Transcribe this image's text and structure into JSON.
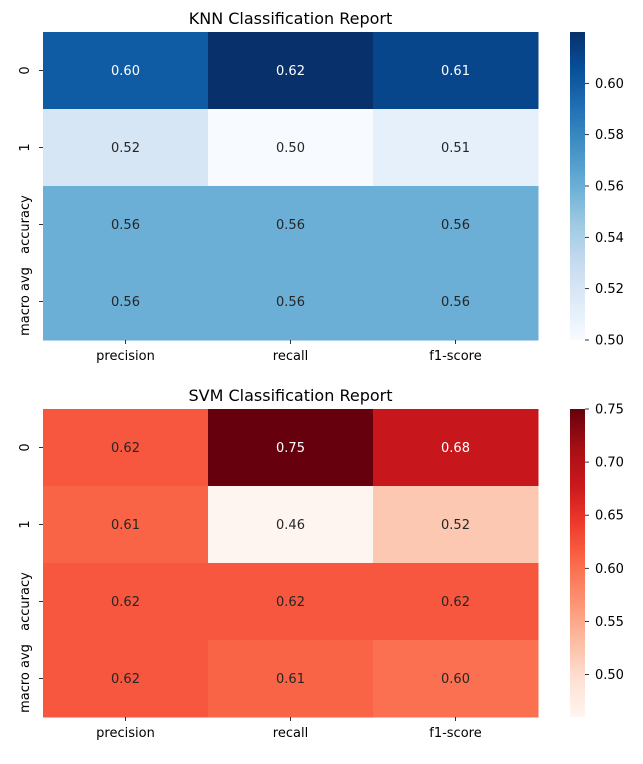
{
  "chart_data": [
    {
      "type": "heatmap",
      "title": "KNN Classification Report",
      "colormap": "Blues",
      "rows": [
        "0",
        "1",
        "accuracy",
        "macro avg"
      ],
      "columns": [
        "precision",
        "recall",
        "f1-score"
      ],
      "values": [
        [
          0.6,
          0.62,
          0.61
        ],
        [
          0.52,
          0.5,
          0.51
        ],
        [
          0.56,
          0.56,
          0.56
        ],
        [
          0.56,
          0.56,
          0.56
        ]
      ],
      "labels": [
        [
          "0.60",
          "0.62",
          "0.61"
        ],
        [
          "0.52",
          "0.50",
          "0.51"
        ],
        [
          "0.56",
          "0.56",
          "0.56"
        ],
        [
          "0.56",
          "0.56",
          "0.56"
        ]
      ],
      "vmin": 0.5,
      "vmax": 0.62,
      "colorbar_ticks": [
        "0.50",
        "0.52",
        "0.54",
        "0.56",
        "0.58",
        "0.60"
      ],
      "annotate": true
    },
    {
      "type": "heatmap",
      "title": "SVM Classification Report",
      "colormap": "Reds",
      "rows": [
        "0",
        "1",
        "accuracy",
        "macro avg"
      ],
      "columns": [
        "precision",
        "recall",
        "f1-score"
      ],
      "values": [
        [
          0.62,
          0.75,
          0.68
        ],
        [
          0.61,
          0.46,
          0.52
        ],
        [
          0.62,
          0.62,
          0.62
        ],
        [
          0.62,
          0.61,
          0.6
        ]
      ],
      "labels": [
        [
          "0.62",
          "0.75",
          "0.68"
        ],
        [
          "0.61",
          "0.46",
          "0.52"
        ],
        [
          "0.62",
          "0.62",
          "0.62"
        ],
        [
          "0.62",
          "0.61",
          "0.60"
        ]
      ],
      "vmin": 0.46,
      "vmax": 0.75,
      "colorbar_ticks": [
        "0.50",
        "0.55",
        "0.60",
        "0.65",
        "0.70",
        "0.75"
      ],
      "annotate": true
    }
  ]
}
